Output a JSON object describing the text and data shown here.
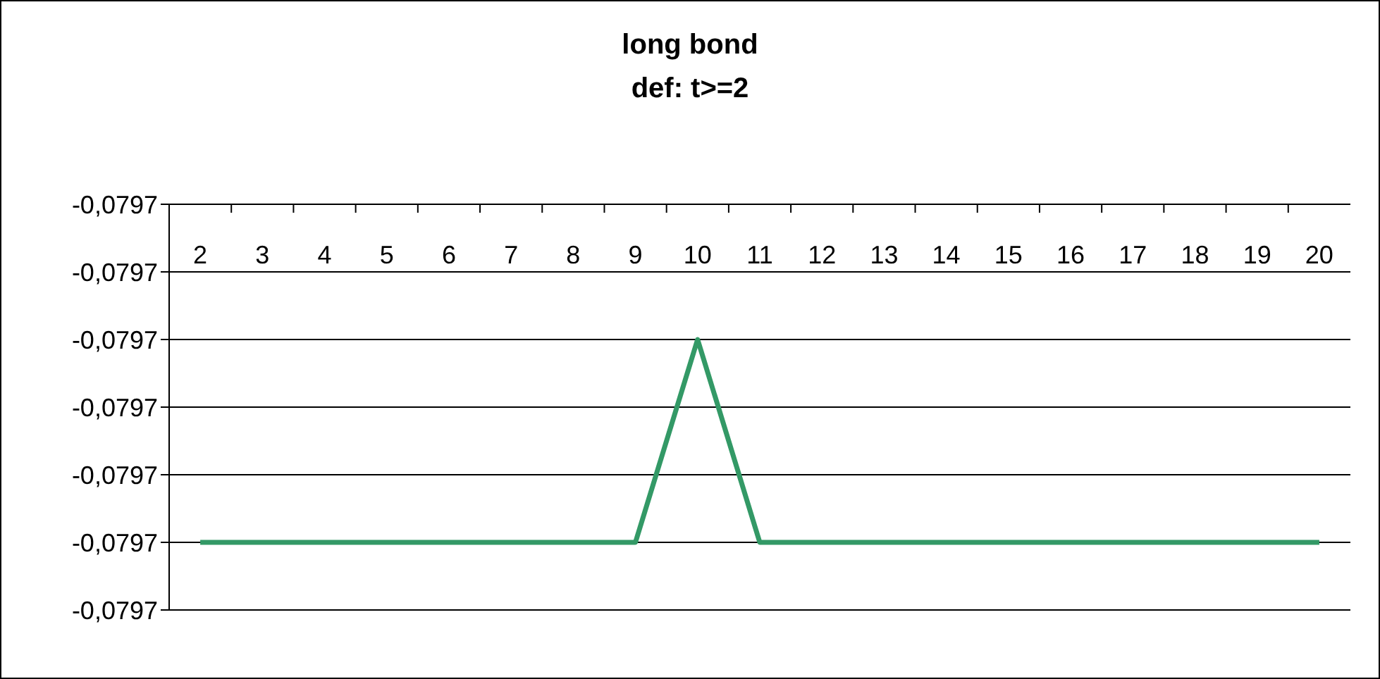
{
  "chart_data": {
    "type": "line",
    "title": "long bond",
    "subtitle": "def: t>=2",
    "categories": [
      "2",
      "3",
      "4",
      "5",
      "6",
      "7",
      "8",
      "9",
      "10",
      "11",
      "12",
      "13",
      "14",
      "15",
      "16",
      "17",
      "18",
      "19",
      "20"
    ],
    "series": [
      {
        "color": "#339966",
        "values": [
          -0.07972,
          -0.07972,
          -0.07972,
          -0.07972,
          -0.07972,
          -0.07972,
          -0.07972,
          -0.07972,
          -0.07969,
          -0.07972,
          -0.07972,
          -0.07972,
          -0.07972,
          -0.07972,
          -0.07972,
          -0.07972,
          -0.07972,
          -0.07972,
          -0.07972
        ]
      }
    ],
    "ylim": [
      -0.07973,
      -0.07967
    ],
    "yticks": [
      {
        "value": -0.07973,
        "label": "-0,0797"
      },
      {
        "value": -0.07972,
        "label": "-0,0797"
      },
      {
        "value": -0.07971,
        "label": "-0,0797"
      },
      {
        "value": -0.0797,
        "label": "-0,0797"
      },
      {
        "value": -0.07969,
        "label": "-0,0797"
      },
      {
        "value": -0.07968,
        "label": "-0,0797"
      },
      {
        "value": -0.07967,
        "label": "-0,0797"
      }
    ],
    "grid": "y",
    "marker": "none",
    "line_style": "solid"
  }
}
